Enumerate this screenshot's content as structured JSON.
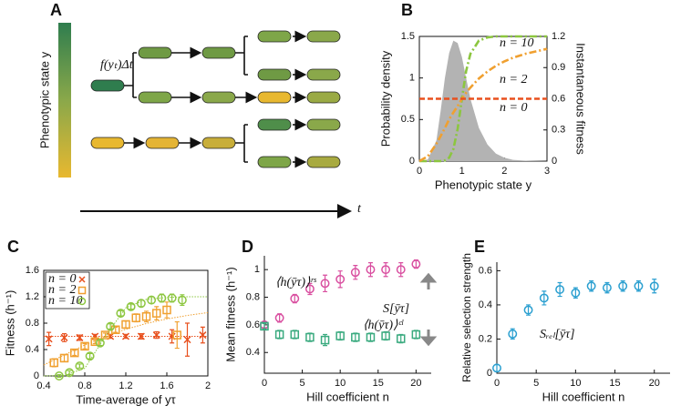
{
  "diagram": {
    "label": "A",
    "y_label": "Phenotypic state y",
    "rate_label": "f(yₜ)Δt",
    "time_label": "t"
  },
  "chart_data": [
    {
      "type": "line",
      "label": "B",
      "x_label": "Phenotypic state y",
      "y_label": "Probability density",
      "y2_label": "Instantaneous fitness",
      "xlim": [
        0,
        3
      ],
      "xticks": [
        0,
        1,
        2,
        3
      ],
      "ylim": [
        0,
        1.5
      ],
      "yticks": [
        0,
        0.5,
        1,
        1.5
      ],
      "y2lim": [
        0,
        1.2
      ],
      "y2ticks": [
        0,
        0.3,
        0.6,
        0.9,
        1.2
      ],
      "frame": "box",
      "series": [
        {
          "color": "#b3b3b3",
          "style": "area",
          "x": [
            0,
            0.2,
            0.4,
            0.5,
            0.6,
            0.7,
            0.8,
            0.9,
            1.0,
            1.1,
            1.2,
            1.4,
            1.6,
            1.8,
            2.0,
            2.2,
            2.5,
            3.0
          ],
          "values": [
            0,
            0.02,
            0.25,
            0.6,
            1.0,
            1.3,
            1.45,
            1.42,
            1.25,
            1.0,
            0.75,
            0.4,
            0.2,
            0.09,
            0.04,
            0.015,
            0.005,
            0
          ]
        },
        {
          "name": "n = 10",
          "color": "#8cc63f",
          "style": "dashdot",
          "axis": "y2",
          "x": [
            0,
            0.2,
            0.4,
            0.5,
            0.6,
            0.7,
            0.8,
            0.9,
            1.0,
            1.1,
            1.2,
            1.4,
            1.6,
            1.8,
            2.0,
            2.2,
            2.5,
            3.0
          ],
          "values": [
            0,
            0,
            0,
            0.001,
            0.007,
            0.033,
            0.116,
            0.31,
            0.6,
            0.866,
            1.033,
            1.16,
            1.19,
            1.2,
            1.2,
            1.2,
            1.2,
            1.2
          ]
        },
        {
          "name": "n = 2",
          "color": "#f0a030",
          "style": "dashdot",
          "axis": "y2",
          "x": [
            0,
            0.2,
            0.4,
            0.5,
            0.6,
            0.7,
            0.8,
            0.9,
            1.0,
            1.1,
            1.2,
            1.4,
            1.6,
            1.8,
            2.0,
            2.2,
            2.5,
            3.0
          ],
          "values": [
            0,
            0.046,
            0.166,
            0.24,
            0.318,
            0.403,
            0.468,
            0.53,
            0.6,
            0.658,
            0.708,
            0.795,
            0.863,
            0.917,
            0.96,
            0.995,
            1.034,
            1.08
          ]
        },
        {
          "name": "n = 0",
          "color": "#e8501e",
          "style": "dashed",
          "axis": "y2",
          "x": [
            0,
            3
          ],
          "values": [
            0.6,
            0.6
          ]
        }
      ]
    },
    {
      "type": "scatter",
      "label": "C",
      "x_label": "Time-average of yτ",
      "y_label": "Fitness (h⁻¹)",
      "xlim": [
        0.4,
        2
      ],
      "xticks": [
        0.4,
        0.8,
        1.2,
        1.6,
        2
      ],
      "ylim": [
        0,
        1.6
      ],
      "yticks": [
        0,
        0.4,
        0.8,
        1.2,
        1.6
      ],
      "frame": "box",
      "legend": "top-left",
      "fit_x": [
        0.4,
        0.6,
        0.8,
        1.0,
        1.2,
        1.4,
        1.6,
        1.8,
        2.0
      ],
      "series": [
        {
          "name": "n = 0",
          "color": "#e8501e",
          "marker": "x",
          "x": [
            0.45,
            0.6,
            0.75,
            0.9,
            1.05,
            1.2,
            1.35,
            1.5,
            1.65,
            1.8,
            1.95
          ],
          "values": [
            0.56,
            0.58,
            0.58,
            0.6,
            0.6,
            0.6,
            0.6,
            0.62,
            0.6,
            0.55,
            0.62
          ],
          "errors": [
            0.1,
            0.06,
            0.04,
            0.03,
            0.03,
            0.03,
            0.04,
            0.05,
            0.1,
            0.25,
            0.12
          ],
          "fit": [
            0.6,
            0.6,
            0.6,
            0.6,
            0.6,
            0.6,
            0.6,
            0.6,
            0.6
          ]
        },
        {
          "name": "n = 2",
          "color": "#f0a030",
          "marker": "square",
          "x": [
            0.5,
            0.6,
            0.7,
            0.8,
            0.9,
            1.0,
            1.1,
            1.2,
            1.3,
            1.4,
            1.5,
            1.6,
            1.7
          ],
          "values": [
            0.2,
            0.27,
            0.35,
            0.45,
            0.52,
            0.62,
            0.7,
            0.78,
            0.88,
            0.9,
            0.95,
            1.0,
            0.62
          ],
          "errors": [
            0.06,
            0.05,
            0.04,
            0.04,
            0.03,
            0.03,
            0.04,
            0.05,
            0.06,
            0.08,
            0.1,
            0.12,
            0.2
          ],
          "fit": [
            0.165,
            0.318,
            0.468,
            0.6,
            0.708,
            0.795,
            0.863,
            0.917,
            0.96
          ]
        },
        {
          "name": "n = 10",
          "color": "#8cc63f",
          "marker": "circle",
          "x": [
            0.55,
            0.65,
            0.75,
            0.85,
            0.95,
            1.05,
            1.15,
            1.25,
            1.35,
            1.45,
            1.55,
            1.65,
            1.75
          ],
          "values": [
            0,
            0.05,
            0.15,
            0.3,
            0.5,
            0.75,
            0.95,
            1.05,
            1.1,
            1.15,
            1.18,
            1.18,
            1.15
          ],
          "errors": [
            0.02,
            0.03,
            0.03,
            0.04,
            0.04,
            0.04,
            0.04,
            0.04,
            0.05,
            0.05,
            0.06,
            0.06,
            0.08
          ],
          "fit": [
            0,
            0.007,
            0.116,
            0.6,
            1.033,
            1.16,
            1.19,
            1.2,
            1.2
          ]
        }
      ]
    },
    {
      "type": "scatter",
      "label": "D",
      "x_label": "Hill coefficient n",
      "y_label": "Mean fitness (h⁻¹)",
      "xlim": [
        0,
        22
      ],
      "xticks": [
        0,
        5,
        10,
        15,
        20
      ],
      "ylim": [
        0.25,
        1.1
      ],
      "yticks": [
        0.4,
        0.6,
        0.8,
        1
      ],
      "frame": "axes",
      "annotations": [
        "S[ȳτ]"
      ],
      "series": [
        {
          "name": "⟨h(ȳτ)⟩ʳˢ",
          "color": "#d94fa0",
          "marker": "circle",
          "x": [
            0,
            2,
            4,
            6,
            8,
            10,
            12,
            14,
            16,
            18,
            20
          ],
          "values": [
            0.6,
            0.65,
            0.79,
            0.86,
            0.9,
            0.93,
            0.98,
            1.0,
            1.0,
            1.0,
            1.04
          ],
          "errors": [
            0.02,
            0.03,
            0.03,
            0.04,
            0.06,
            0.06,
            0.05,
            0.05,
            0.05,
            0.05,
            0.03
          ]
        },
        {
          "name": "⟨h(ȳτ)⟩ᶜˡ",
          "color": "#3aaa7f",
          "marker": "square",
          "x": [
            0,
            2,
            4,
            6,
            8,
            10,
            12,
            14,
            16,
            18,
            20
          ],
          "values": [
            0.59,
            0.53,
            0.53,
            0.51,
            0.49,
            0.52,
            0.51,
            0.51,
            0.52,
            0.5,
            0.53
          ],
          "errors": [
            0.02,
            0.03,
            0.03,
            0.03,
            0.04,
            0.03,
            0.03,
            0.03,
            0.03,
            0.03,
            0.03
          ]
        }
      ]
    },
    {
      "type": "scatter",
      "label": "E",
      "x_label": "Hill coefficient n",
      "y_label": "Relative selection strength",
      "xlim": [
        0,
        22
      ],
      "xticks": [
        0,
        5,
        10,
        15,
        20
      ],
      "ylim": [
        0,
        0.65
      ],
      "yticks": [
        0,
        0.2,
        0.4,
        0.6
      ],
      "frame": "axes",
      "annotations": [
        "Sᵣₑₗ[ȳτ]"
      ],
      "series": [
        {
          "color": "#2a9fd0",
          "marker": "circle",
          "x": [
            0,
            2,
            4,
            6,
            8,
            10,
            12,
            14,
            16,
            18,
            20
          ],
          "values": [
            0.03,
            0.23,
            0.37,
            0.44,
            0.49,
            0.47,
            0.51,
            0.5,
            0.51,
            0.51,
            0.51
          ],
          "errors": [
            0.02,
            0.03,
            0.03,
            0.04,
            0.04,
            0.03,
            0.03,
            0.03,
            0.03,
            0.03,
            0.04
          ]
        }
      ]
    }
  ]
}
